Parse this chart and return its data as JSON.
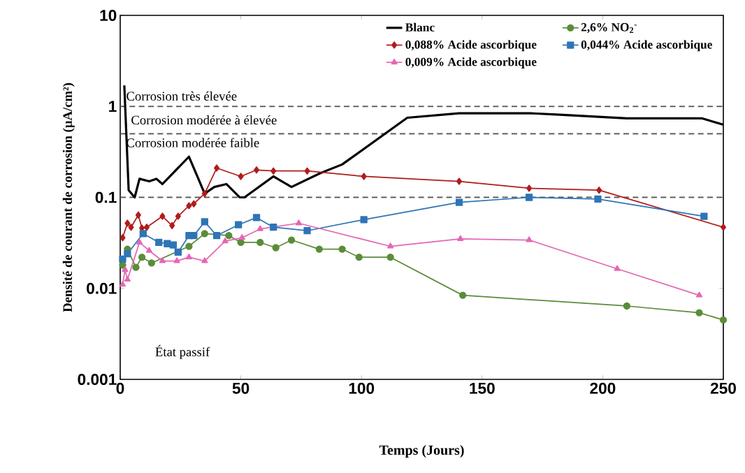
{
  "chart_data": {
    "type": "line",
    "log": "y",
    "xlabel": "Temps (Jours)",
    "ylabel": "Densité de courant de corrosion (µA/cm²)",
    "xlim": [
      0,
      250
    ],
    "xticks": [
      0,
      50,
      100,
      150,
      200,
      250
    ],
    "ylim": [
      0.001,
      10
    ],
    "yticks": [
      0.001,
      0.01,
      0.1,
      1,
      10
    ],
    "legend": "top right",
    "grid": false,
    "line_style": "solid",
    "ref_lines": [
      {
        "axis": "y",
        "value": 1,
        "color": "#555555",
        "line_style": "dashed"
      },
      {
        "axis": "y",
        "value": 0.5,
        "color": "#555555",
        "line_style": "dashed"
      },
      {
        "axis": "y",
        "value": 0.1,
        "color": "#555555",
        "line_style": "dashed"
      }
    ],
    "annotations": [
      "Corrosion très élevée",
      "Corrosion modérée à élevée",
      "Corrosion modérée faible",
      "État passif"
    ],
    "series": [
      {
        "name": "Blanc",
        "color": "#000000",
        "marker": "none",
        "x": [
          1.7,
          3.5,
          6,
          8,
          12,
          15,
          17.5,
          28.5,
          35,
          39,
          44,
          49.5,
          51.5,
          63.5,
          71,
          83,
          92,
          119,
          140.5,
          170,
          182,
          210,
          241,
          250
        ],
        "values": [
          1.7,
          0.12,
          0.1,
          0.16,
          0.15,
          0.16,
          0.14,
          0.28,
          0.11,
          0.13,
          0.14,
          0.1,
          0.1,
          0.17,
          0.13,
          0.185,
          0.23,
          0.75,
          0.84,
          0.84,
          0.81,
          0.74,
          0.74,
          0.63
        ]
      },
      {
        "name": "2,6% NO$_{2}$$^{-}$",
        "color": "#5b8c3a",
        "marker": "circle",
        "x": [
          1,
          3,
          6.5,
          9,
          13,
          28.5,
          35,
          45,
          50,
          58,
          64.5,
          71,
          82.5,
          92,
          99,
          112,
          142,
          210,
          240,
          250
        ],
        "values": [
          0.018,
          0.027,
          0.017,
          0.022,
          0.019,
          0.029,
          0.04,
          0.038,
          0.032,
          0.032,
          0.028,
          0.034,
          0.027,
          0.027,
          0.022,
          0.022,
          0.0084,
          0.0064,
          0.0054,
          0.0045
        ]
      },
      {
        "name": "0,088% Acide ascorbique",
        "color": "#b01c1c",
        "marker": "diamond",
        "x": [
          1,
          3,
          4.5,
          7.5,
          9,
          11,
          17.5,
          21.5,
          24,
          28.5,
          30.5,
          35,
          40,
          50,
          56.5,
          63.5,
          77.5,
          101,
          140.5,
          169.5,
          198.5,
          250
        ],
        "values": [
          0.036,
          0.052,
          0.047,
          0.064,
          0.046,
          0.047,
          0.062,
          0.049,
          0.062,
          0.081,
          0.085,
          0.11,
          0.21,
          0.17,
          0.2,
          0.195,
          0.195,
          0.17,
          0.15,
          0.126,
          0.12,
          0.047
        ]
      },
      {
        "name": "0,044% Acide ascorbique",
        "color": "#2e75b6",
        "marker": "square",
        "x": [
          1,
          3,
          9.5,
          16,
          19.5,
          22,
          24,
          28.5,
          30.5,
          35,
          40,
          49,
          56.5,
          63.5,
          77.5,
          101,
          140.5,
          169.5,
          198,
          242
        ],
        "values": [
          0.021,
          0.024,
          0.04,
          0.032,
          0.031,
          0.03,
          0.025,
          0.038,
          0.038,
          0.054,
          0.038,
          0.05,
          0.06,
          0.047,
          0.043,
          0.057,
          0.088,
          0.1,
          0.096,
          0.062
        ]
      },
      {
        "name": "0,009% Acide ascorbique",
        "color": "#e467b4",
        "marker": "triangle",
        "x": [
          1,
          2,
          3,
          8,
          12,
          17.5,
          23.5,
          28.5,
          35,
          43.5,
          50.5,
          58,
          74,
          112,
          141,
          169.5,
          206,
          240
        ],
        "values": [
          0.011,
          0.016,
          0.0125,
          0.032,
          0.026,
          0.02,
          0.02,
          0.022,
          0.02,
          0.033,
          0.036,
          0.045,
          0.052,
          0.029,
          0.035,
          0.034,
          0.0164,
          0.0084
        ]
      }
    ]
  }
}
